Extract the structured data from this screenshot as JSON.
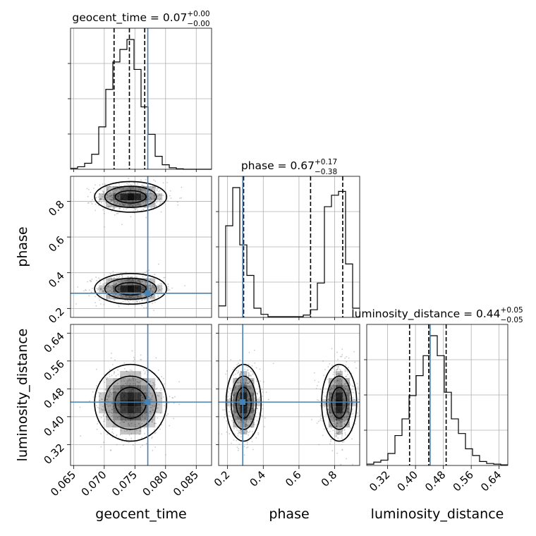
{
  "chart_data": {
    "type": "corner",
    "parameters": [
      "geocent_time",
      "phase",
      "luminosity_distance"
    ],
    "axis_labels": {
      "geocent_time": "geocent_time",
      "phase": "phase",
      "luminosity_distance": "luminosity_distance"
    },
    "titles": {
      "geocent_time": {
        "base": "geocent_time = 0.07",
        "plus": "+0.00",
        "minus": "−0.00"
      },
      "phase": {
        "base": "phase = 0.67",
        "plus": "+0.17",
        "minus": "−0.38"
      },
      "luminosity_distance": {
        "base": "luminosity_distance = 0.44",
        "plus": "+0.05",
        "minus": "−0.05"
      }
    },
    "ranges": {
      "geocent_time": [
        0.0645,
        0.0875
      ],
      "phase": [
        0.15,
        0.94
      ],
      "luminosity_distance": [
        0.26,
        0.665
      ]
    },
    "ticks": {
      "geocent_time": [
        "0.065",
        "0.070",
        "0.075",
        "0.080",
        "0.085"
      ],
      "phase": [
        "0.2",
        "0.4",
        "0.6",
        "0.8"
      ],
      "luminosity_distance": [
        "0.32",
        "0.40",
        "0.48",
        "0.56",
        "0.64"
      ]
    },
    "truths": {
      "geocent_time": 0.0771,
      "phase": 0.285,
      "luminosity_distance": 0.442
    },
    "quantiles": {
      "geocent_time": [
        0.0716,
        0.0741,
        0.0766
      ],
      "phase": [
        0.29,
        0.665,
        0.845
      ],
      "luminosity_distance": [
        0.383,
        0.438,
        0.488
      ]
    },
    "histograms": {
      "geocent_time": {
        "edges_range": [
          0.0645,
          0.0875
        ],
        "bins": 20,
        "counts": [
          2,
          5,
          12,
          30,
          85,
          160,
          215,
          240,
          260,
          200,
          125,
          70,
          26,
          9,
          3,
          1,
          0,
          0,
          0,
          0
        ]
      },
      "phase": {
        "edges_range": [
          0.15,
          0.94
        ],
        "bins": 20,
        "counts": [
          15,
          120,
          170,
          95,
          55,
          12,
          4,
          1,
          1,
          1,
          1,
          1,
          3,
          10,
          45,
          145,
          160,
          165,
          70,
          12
        ]
      },
      "luminosity_distance": {
        "edges_range": [
          0.26,
          0.665
        ],
        "bins": 20,
        "counts": [
          2,
          5,
          8,
          18,
          45,
          70,
          105,
          135,
          165,
          195,
          165,
          110,
          70,
          48,
          25,
          15,
          6,
          3,
          2,
          1
        ]
      }
    },
    "pair_densities": {
      "phase_vs_geocent_time": {
        "modes": [
          {
            "x": 0.0743,
            "y": 0.825,
            "sx": 0.0024,
            "sy": 0.035,
            "weight": 1.0
          },
          {
            "x": 0.0743,
            "y": 0.31,
            "sx": 0.0024,
            "sy": 0.035,
            "weight": 1.0
          }
        ]
      },
      "luminosity_distance_vs_geocent_time": {
        "modes": [
          {
            "x": 0.0743,
            "y": 0.44,
            "sx": 0.0024,
            "sy": 0.045,
            "weight": 1.0
          }
        ]
      },
      "luminosity_distance_vs_phase": {
        "modes": [
          {
            "x": 0.29,
            "y": 0.44,
            "sx": 0.04,
            "sy": 0.045,
            "weight": 1.0
          },
          {
            "x": 0.825,
            "y": 0.44,
            "sx": 0.04,
            "sy": 0.045,
            "weight": 1.0
          }
        ]
      }
    },
    "grid": true,
    "colors": {
      "truth": "#4682b4",
      "hist": "#000000",
      "scatter": "#8c8c8c"
    }
  }
}
